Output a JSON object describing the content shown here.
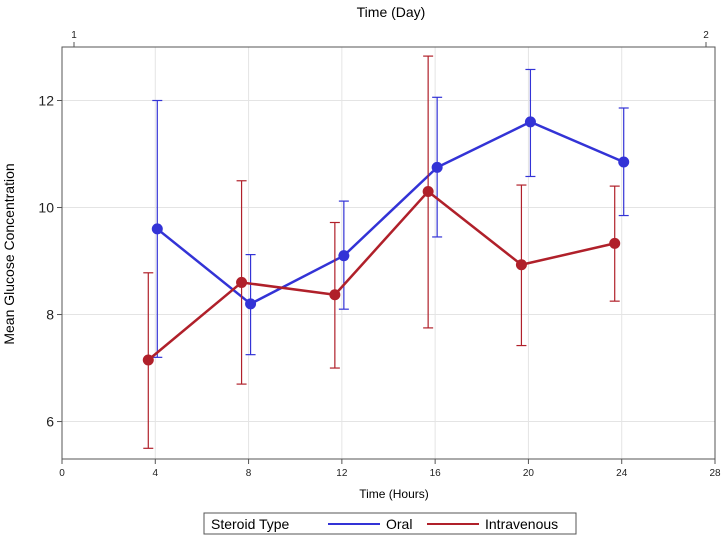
{
  "chart_data": {
    "type": "line",
    "title": "",
    "xlabel": "Time (Hours)",
    "ylabel": "Mean Glucose Concentration",
    "x2label": "Time (Day)",
    "xlim": [
      0,
      28
    ],
    "ylim": [
      5.3,
      13
    ],
    "x_ticks": [
      0,
      4,
      8,
      12,
      16,
      20,
      24,
      28
    ],
    "y_ticks": [
      6,
      8,
      10,
      12
    ],
    "x2_ticks": [
      {
        "x": 0,
        "label": "1"
      },
      {
        "x": 28,
        "label": "2"
      }
    ],
    "grid": true,
    "legend_title": "Steroid Type",
    "legend_position": "bottom",
    "series": [
      {
        "name": "Oral",
        "color": "#3333d6",
        "x": [
          4,
          8,
          12,
          16,
          20,
          24
        ],
        "y": [
          9.6,
          8.2,
          9.1,
          10.75,
          11.6,
          10.85
        ],
        "lower": [
          7.2,
          7.25,
          8.1,
          9.45,
          10.58,
          9.85
        ],
        "upper": [
          12.0,
          9.12,
          10.12,
          12.06,
          12.58,
          11.86
        ]
      },
      {
        "name": "Intravenous",
        "color": "#b0202a",
        "x": [
          4,
          8,
          12,
          16,
          20,
          24
        ],
        "y": [
          7.15,
          8.6,
          8.37,
          10.3,
          8.93,
          9.33
        ],
        "lower": [
          5.5,
          6.7,
          7.0,
          7.75,
          7.42,
          8.25
        ],
        "upper": [
          8.78,
          10.5,
          9.72,
          12.83,
          10.42,
          10.4
        ]
      }
    ]
  }
}
